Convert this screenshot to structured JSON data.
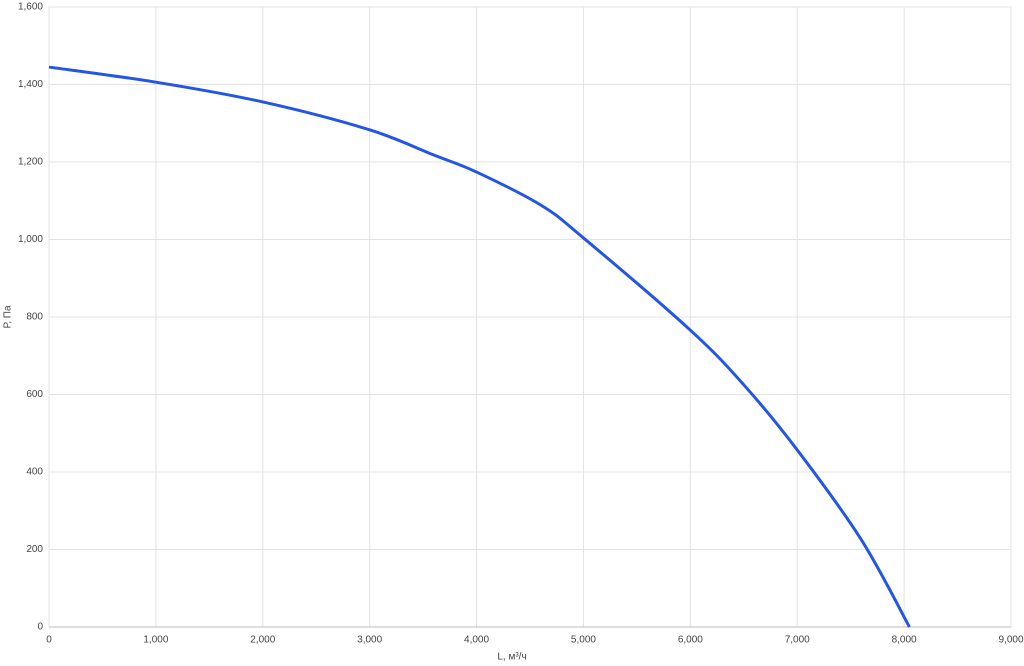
{
  "chart_data": {
    "type": "line",
    "x_label": "L, м³/ч",
    "y_label": "Р, Па",
    "x": [
      0,
      1000,
      2000,
      3000,
      3600,
      4000,
      4600,
      5000,
      6000,
      6500,
      7000,
      7600,
      8050
    ],
    "series": [
      {
        "color": "#2456e6",
        "values": [
          1445,
          1406,
          1355,
          1283,
          1218,
          1174,
          1089,
          1004,
          766,
          625,
          457,
          225,
          0
        ]
      }
    ],
    "xlim": [
      0,
      9000
    ],
    "xticks": [
      0,
      {
        "value": 1000,
        "label": "1,000"
      },
      {
        "value": 2000,
        "label": "2,000"
      },
      {
        "value": 3000,
        "label": "3,000"
      },
      {
        "value": 4000,
        "label": "4,000"
      },
      {
        "value": 5000,
        "label": "5,000"
      },
      {
        "value": 6000,
        "label": "6,000"
      },
      {
        "value": 7000,
        "label": "7,000"
      },
      {
        "value": 8000,
        "label": "8,000"
      },
      {
        "value": 9000,
        "label": "9,000"
      }
    ],
    "ylim": [
      0,
      1600
    ],
    "yticks": [
      0,
      200,
      400,
      600,
      800,
      {
        "value": 1000,
        "label": "1,000"
      },
      {
        "value": 1200,
        "label": "1,200"
      },
      {
        "value": 1400,
        "label": "1,400"
      },
      {
        "value": 1600,
        "label": "1,600"
      }
    ],
    "grid": true
  }
}
